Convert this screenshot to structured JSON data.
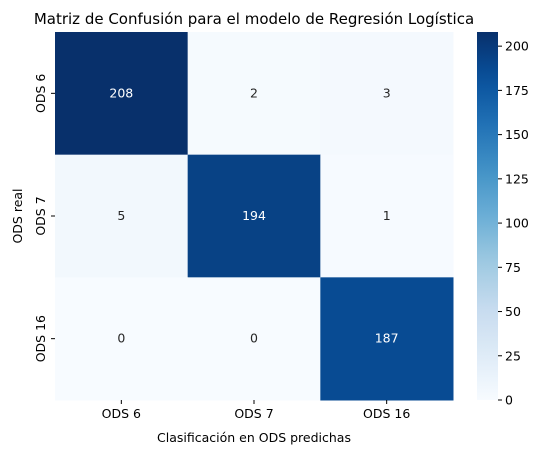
{
  "chart_data": {
    "type": "heatmap",
    "title": "Matriz de Confusión para el modelo de Regresión Logística",
    "xlabel": "Clasificación en ODS predichas",
    "ylabel": "ODS real",
    "x_categories": [
      "ODS 6",
      "ODS 7",
      "ODS 16"
    ],
    "y_categories": [
      "ODS 6",
      "ODS 7",
      "ODS 16"
    ],
    "values": [
      [
        208,
        2,
        3
      ],
      [
        5,
        194,
        1
      ],
      [
        0,
        0,
        187
      ]
    ],
    "colormap": "Blues",
    "colorbar": {
      "min": 0,
      "max": 208,
      "ticks": [
        0,
        25,
        50,
        75,
        100,
        125,
        150,
        175,
        200
      ]
    },
    "annotations": true
  }
}
